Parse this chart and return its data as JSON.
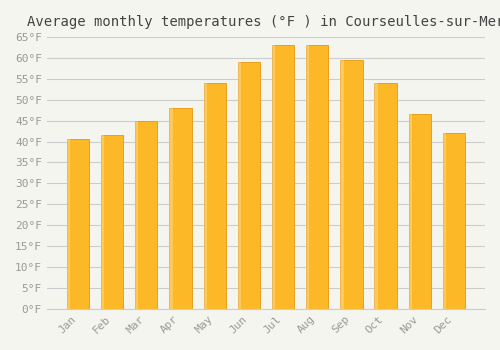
{
  "title": "Average monthly temperatures (°F ) in Courseulles-sur-Mer",
  "months": [
    "Jan",
    "Feb",
    "Mar",
    "Apr",
    "May",
    "Jun",
    "Jul",
    "Aug",
    "Sep",
    "Oct",
    "Nov",
    "Dec"
  ],
  "values": [
    40.5,
    41.5,
    45.0,
    48.0,
    54.0,
    59.0,
    63.0,
    63.0,
    59.5,
    54.0,
    46.5,
    42.0
  ],
  "bar_color": "#FDB827",
  "bar_edge_color": "#E8A020",
  "background_color": "#F5F5F0",
  "grid_color": "#CCCCCC",
  "text_color": "#999999",
  "ylim": [
    0,
    65
  ],
  "yticks": [
    0,
    5,
    10,
    15,
    20,
    25,
    30,
    35,
    40,
    45,
    50,
    55,
    60,
    65
  ],
  "title_fontsize": 10,
  "tick_fontsize": 8
}
